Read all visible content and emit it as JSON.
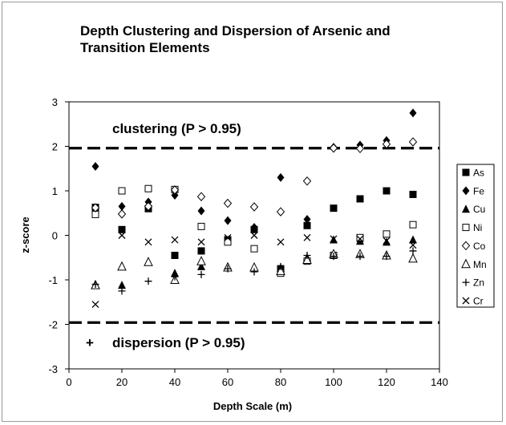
{
  "chart_data": {
    "type": "scatter",
    "title": "Depth Clustering and Dispersion of Arsenic and Transition Elements",
    "xlabel": "Depth Scale (m)",
    "ylabel": "z-score",
    "xlim": [
      0,
      140
    ],
    "ylim": [
      -3,
      3
    ],
    "x_ticks": [
      "0",
      "20",
      "40",
      "60",
      "80",
      "100",
      "120",
      "140"
    ],
    "y_ticks": [
      "3",
      "2",
      "1",
      "0",
      "-1",
      "-2",
      "-3"
    ],
    "grid": false,
    "legend_position": "right",
    "reference_lines": [
      {
        "label": "clustering (P > 0.95)",
        "y": 1.96
      },
      {
        "label": "dispersion (P > 0.95)",
        "y": -1.96
      }
    ],
    "annotation_marker": "+",
    "series": [
      {
        "name": "As",
        "marker": "filled-square",
        "x": [
          10,
          20,
          30,
          40,
          50,
          60,
          70,
          80,
          90,
          100,
          110,
          120,
          130
        ],
        "values": [
          0.63,
          0.13,
          0.6,
          -0.45,
          -0.35,
          -0.1,
          0.13,
          -0.75,
          0.22,
          0.61,
          0.82,
          1.0,
          0.92
        ]
      },
      {
        "name": "Fe",
        "marker": "filled-diamond",
        "x": [
          10,
          20,
          30,
          40,
          50,
          60,
          70,
          80,
          90,
          100,
          110,
          120,
          130
        ],
        "values": [
          1.55,
          0.65,
          0.75,
          0.9,
          0.55,
          0.33,
          0.18,
          1.3,
          0.36,
          1.98,
          2.03,
          2.13,
          2.75
        ]
      },
      {
        "name": "Cu",
        "marker": "filled-triangle",
        "x": [
          10,
          20,
          30,
          40,
          50,
          60,
          70,
          80,
          90,
          100,
          110,
          120,
          130
        ],
        "values": [
          -1.1,
          -1.12,
          -0.6,
          -0.85,
          -0.7,
          -0.7,
          -0.72,
          -0.73,
          -0.5,
          -0.1,
          -0.13,
          -0.15,
          -0.1
        ]
      },
      {
        "name": "Ni",
        "marker": "open-square",
        "x": [
          10,
          20,
          30,
          40,
          50,
          60,
          70,
          80,
          90,
          100,
          110,
          120,
          130
        ],
        "values": [
          0.47,
          1.0,
          1.05,
          1.03,
          0.2,
          -0.15,
          -0.3,
          -0.85,
          -0.58,
          -0.45,
          -0.05,
          0.03,
          0.24
        ]
      },
      {
        "name": "Co",
        "marker": "open-diamond",
        "x": [
          10,
          20,
          30,
          40,
          50,
          60,
          70,
          80,
          90,
          100,
          110,
          120,
          130
        ],
        "values": [
          0.62,
          0.48,
          0.65,
          1.02,
          0.87,
          0.72,
          0.64,
          0.53,
          1.22,
          1.96,
          1.95,
          2.05,
          2.1
        ]
      },
      {
        "name": "Mn",
        "marker": "open-triangle",
        "x": [
          10,
          20,
          30,
          40,
          50,
          60,
          70,
          80,
          90,
          100,
          110,
          120,
          130
        ],
        "values": [
          -1.12,
          -0.7,
          -0.6,
          -1.0,
          -0.58,
          -0.72,
          -0.72,
          -0.8,
          -0.55,
          -0.42,
          -0.42,
          -0.45,
          -0.52
        ]
      },
      {
        "name": "Zn",
        "marker": "plus",
        "x": [
          10,
          20,
          30,
          40,
          50,
          60,
          70,
          80,
          90,
          100,
          110,
          120,
          130
        ],
        "values": [
          -1.1,
          -1.25,
          -1.03,
          -0.93,
          -0.88,
          -0.75,
          -0.82,
          -0.7,
          -0.45,
          -0.47,
          -0.47,
          -0.47,
          -0.35
        ]
      },
      {
        "name": "Cr",
        "marker": "cross",
        "x": [
          10,
          20,
          30,
          40,
          50,
          60,
          70,
          80,
          90,
          100,
          110,
          120,
          130
        ],
        "values": [
          -1.55,
          0.0,
          -0.15,
          -0.1,
          -0.15,
          -0.05,
          0.0,
          -0.15,
          -0.05,
          -0.08,
          -0.08,
          -0.12,
          -0.22
        ]
      }
    ]
  }
}
